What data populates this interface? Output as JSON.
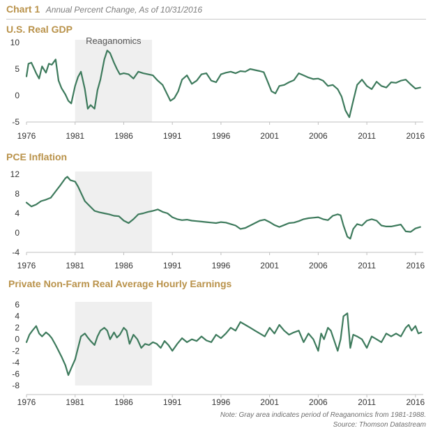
{
  "header": {
    "chart_label": "Chart 1",
    "subtitle": "Annual Percent Change, As of 10/31/2016"
  },
  "footer": {
    "note": "Note: Gray area indicates period of Reaganomics from 1981-1988.",
    "source": "Source: Thomson Datastream"
  },
  "colors": {
    "line": "#3d7a5c",
    "shade": "#efefef",
    "title": "#b9924a",
    "axis": "#bfbfbf",
    "text": "#333333"
  },
  "chart_data": [
    {
      "type": "line",
      "title": "U.S. Real GDP",
      "xlabel": "",
      "ylabel": "",
      "xlim": [
        1976,
        2016.8
      ],
      "ylim": [
        -5,
        10
      ],
      "yticks": [
        10,
        5,
        0,
        -5
      ],
      "xtick_labels": [
        "1976",
        "1981",
        "1986",
        "1991",
        "1996",
        "2001",
        "2006",
        "2011",
        "2016"
      ],
      "shaded_region": {
        "from": 1981,
        "to": 1988.9,
        "label": "Reaganomics"
      },
      "series": [
        {
          "name": "U.S. Real GDP",
          "x": [
            1976,
            1976.2,
            1976.5,
            1976.8,
            1977,
            1977.3,
            1977.6,
            1978,
            1978.3,
            1978.6,
            1979,
            1979.3,
            1979.6,
            1980,
            1980.3,
            1980.6,
            1981,
            1981.3,
            1981.6,
            1982,
            1982.3,
            1982.6,
            1983,
            1983.3,
            1983.6,
            1984,
            1984.3,
            1984.6,
            1985,
            1985.3,
            1985.6,
            1986,
            1986.5,
            1987,
            1987.5,
            1988,
            1988.5,
            1989,
            1989.5,
            1990,
            1990.4,
            1990.8,
            1991.2,
            1991.6,
            1992,
            1992.5,
            1993,
            1993.5,
            1994,
            1994.5,
            1995,
            1995.5,
            1996,
            1996.5,
            1997,
            1997.5,
            1998,
            1998.5,
            1999,
            1999.5,
            2000,
            2000.4,
            2000.8,
            2001.2,
            2001.6,
            2002,
            2002.5,
            2003,
            2003.5,
            2004,
            2004.5,
            2005,
            2005.5,
            2006,
            2006.5,
            2007,
            2007.5,
            2008,
            2008.4,
            2008.8,
            2009.2,
            2009.6,
            2010,
            2010.5,
            2011,
            2011.5,
            2012,
            2012.5,
            2013,
            2013.5,
            2014,
            2014.5,
            2015,
            2015.5,
            2016,
            2016.5
          ],
          "y": [
            3.6,
            6.0,
            6.2,
            5.0,
            4.2,
            3.2,
            5.5,
            4.3,
            6.0,
            5.8,
            6.8,
            2.8,
            1.4,
            0.2,
            -1.0,
            -1.5,
            1.8,
            3.5,
            4.5,
            1.2,
            -2.5,
            -1.8,
            -2.5,
            1.0,
            3.0,
            6.8,
            8.5,
            8.0,
            6.2,
            5.0,
            4.0,
            4.2,
            4.0,
            3.2,
            4.5,
            4.2,
            4.0,
            3.8,
            2.8,
            2.0,
            0.5,
            -1.0,
            -0.5,
            0.8,
            3.0,
            3.8,
            2.2,
            2.8,
            4.0,
            4.2,
            2.8,
            2.5,
            4.0,
            4.3,
            4.5,
            4.2,
            4.6,
            4.5,
            5.0,
            4.8,
            4.6,
            4.4,
            2.6,
            0.8,
            0.4,
            1.8,
            2.0,
            2.5,
            2.9,
            4.2,
            3.8,
            3.4,
            3.1,
            3.2,
            2.8,
            1.8,
            2.0,
            1.2,
            -0.2,
            -2.8,
            -4.1,
            -1.0,
            2.0,
            3.0,
            1.8,
            1.2,
            2.6,
            1.8,
            1.5,
            2.5,
            2.4,
            2.8,
            3.0,
            2.1,
            1.3,
            1.5
          ]
        }
      ]
    },
    {
      "type": "line",
      "title": "PCE Inflation",
      "xlabel": "",
      "ylabel": "",
      "xlim": [
        1976,
        2016.8
      ],
      "ylim": [
        -4,
        12
      ],
      "yticks": [
        12,
        8,
        4,
        0,
        -4
      ],
      "xtick_labels": [
        "1976",
        "1981",
        "1986",
        "1991",
        "1996",
        "2001",
        "2006",
        "2011",
        "2016"
      ],
      "shaded_region": {
        "from": 1981,
        "to": 1988.9,
        "label": ""
      },
      "series": [
        {
          "name": "PCE Inflation",
          "x": [
            1976,
            1976.5,
            1977,
            1977.5,
            1978,
            1978.5,
            1979,
            1979.5,
            1980,
            1980.2,
            1980.5,
            1981,
            1981.3,
            1981.6,
            1982,
            1982.5,
            1983,
            1983.5,
            1984,
            1984.5,
            1985,
            1985.5,
            1986,
            1986.5,
            1987,
            1987.5,
            1988,
            1988.5,
            1989,
            1989.5,
            1990,
            1990.5,
            1991,
            1991.5,
            1992,
            1992.5,
            1993,
            1993.5,
            1994,
            1994.5,
            1995,
            1995.5,
            1996,
            1996.5,
            1997,
            1997.5,
            1998,
            1998.5,
            1999,
            1999.5,
            2000,
            2000.5,
            2001,
            2001.5,
            2002,
            2002.5,
            2003,
            2003.5,
            2004,
            2004.5,
            2005,
            2005.5,
            2006,
            2006.5,
            2007,
            2007.5,
            2008,
            2008.3,
            2008.6,
            2009,
            2009.3,
            2009.6,
            2010,
            2010.5,
            2011,
            2011.5,
            2012,
            2012.5,
            2013,
            2013.5,
            2014,
            2014.5,
            2015,
            2015.5,
            2016,
            2016.5
          ],
          "y": [
            6.2,
            5.4,
            5.8,
            6.5,
            6.8,
            7.2,
            8.5,
            9.8,
            11.2,
            11.5,
            10.8,
            10.5,
            9.5,
            8.2,
            6.5,
            5.5,
            4.5,
            4.2,
            4.0,
            3.8,
            3.5,
            3.4,
            2.5,
            2.0,
            2.8,
            3.8,
            4.0,
            4.3,
            4.5,
            4.8,
            4.3,
            4.0,
            3.2,
            2.8,
            2.6,
            2.7,
            2.5,
            2.4,
            2.3,
            2.2,
            2.1,
            2.0,
            2.2,
            2.1,
            1.8,
            1.5,
            0.8,
            1.0,
            1.5,
            2.0,
            2.5,
            2.7,
            2.2,
            1.6,
            1.2,
            1.6,
            2.0,
            2.1,
            2.4,
            2.8,
            3.0,
            3.1,
            3.2,
            2.8,
            2.6,
            3.5,
            3.8,
            3.6,
            1.5,
            -0.8,
            -1.2,
            0.8,
            1.8,
            1.5,
            2.5,
            2.8,
            2.5,
            1.5,
            1.3,
            1.3,
            1.5,
            1.7,
            0.3,
            0.2,
            0.9,
            1.2
          ]
        }
      ]
    },
    {
      "type": "line",
      "title": "Private Non-Farm Real Average Hourly Earnings",
      "xlabel": "",
      "ylabel": "",
      "xlim": [
        1976,
        2016.8
      ],
      "ylim": [
        -8,
        6
      ],
      "yticks": [
        6,
        4,
        2,
        0,
        -2,
        -4,
        -6,
        -8
      ],
      "xtick_labels": [
        "1976",
        "1981",
        "1986",
        "1991",
        "1996",
        "2001",
        "2006",
        "2011",
        "2016"
      ],
      "shaded_region": {
        "from": 1981,
        "to": 1988.9,
        "label": ""
      },
      "series": [
        {
          "name": "Private Non-Farm Real Average Hourly Earnings",
          "x": [
            1976,
            1976.3,
            1976.6,
            1977,
            1977.3,
            1977.6,
            1978,
            1978.3,
            1978.6,
            1979,
            1979.3,
            1979.6,
            1980,
            1980.3,
            1980.6,
            1981,
            1981.3,
            1981.6,
            1982,
            1982.3,
            1982.6,
            1983,
            1983.3,
            1983.6,
            1984,
            1984.3,
            1984.6,
            1985,
            1985.3,
            1985.6,
            1986,
            1986.3,
            1986.6,
            1987,
            1987.4,
            1987.8,
            1988.2,
            1988.6,
            1989,
            1989.4,
            1989.8,
            1990.2,
            1990.6,
            1991,
            1991.5,
            1992,
            1992.5,
            1993,
            1993.5,
            1994,
            1994.5,
            1995,
            1995.5,
            1996,
            1996.5,
            1997,
            1997.5,
            1998,
            1998.5,
            1999,
            1999.5,
            2000,
            2000.5,
            2001,
            2001.5,
            2002,
            2002.5,
            2003,
            2003.5,
            2004,
            2004.5,
            2005,
            2005.5,
            2006,
            2006.3,
            2006.6,
            2007,
            2007.3,
            2007.6,
            2008,
            2008.3,
            2008.6,
            2009,
            2009.3,
            2009.6,
            2010,
            2010.5,
            2011,
            2011.5,
            2012,
            2012.5,
            2013,
            2013.5,
            2014,
            2014.5,
            2015,
            2015.3,
            2015.6,
            2016,
            2016.3,
            2016.6
          ],
          "y": [
            -0.5,
            0.8,
            1.5,
            2.3,
            1.0,
            0.5,
            1.2,
            0.8,
            0.2,
            -1.0,
            -2.0,
            -3.0,
            -4.5,
            -6.2,
            -5.0,
            -3.5,
            -1.5,
            0.5,
            1.0,
            0.3,
            -0.3,
            -1.0,
            0.5,
            1.5,
            2.0,
            1.5,
            0.0,
            1.2,
            0.3,
            0.8,
            2.0,
            1.5,
            -0.8,
            0.8,
            0.0,
            -1.5,
            -0.8,
            -1.0,
            -0.5,
            -0.8,
            -1.5,
            -0.3,
            -1.0,
            -2.0,
            -0.8,
            0.2,
            -0.5,
            0.0,
            -0.3,
            0.5,
            -0.2,
            -0.5,
            0.8,
            0.2,
            1.0,
            2.0,
            1.5,
            3.0,
            2.5,
            2.0,
            1.5,
            1.0,
            0.5,
            2.0,
            1.0,
            2.5,
            1.5,
            0.8,
            1.2,
            1.5,
            -0.5,
            1.0,
            0.0,
            -2.0,
            1.0,
            0.0,
            2.0,
            1.5,
            0.0,
            -2.0,
            0.0,
            4.0,
            4.5,
            -1.5,
            0.8,
            0.5,
            0.0,
            -1.5,
            0.5,
            0.0,
            -0.5,
            1.0,
            0.5,
            1.0,
            0.5,
            2.0,
            2.5,
            1.5,
            2.3,
            1.0,
            1.2
          ]
        }
      ]
    }
  ]
}
